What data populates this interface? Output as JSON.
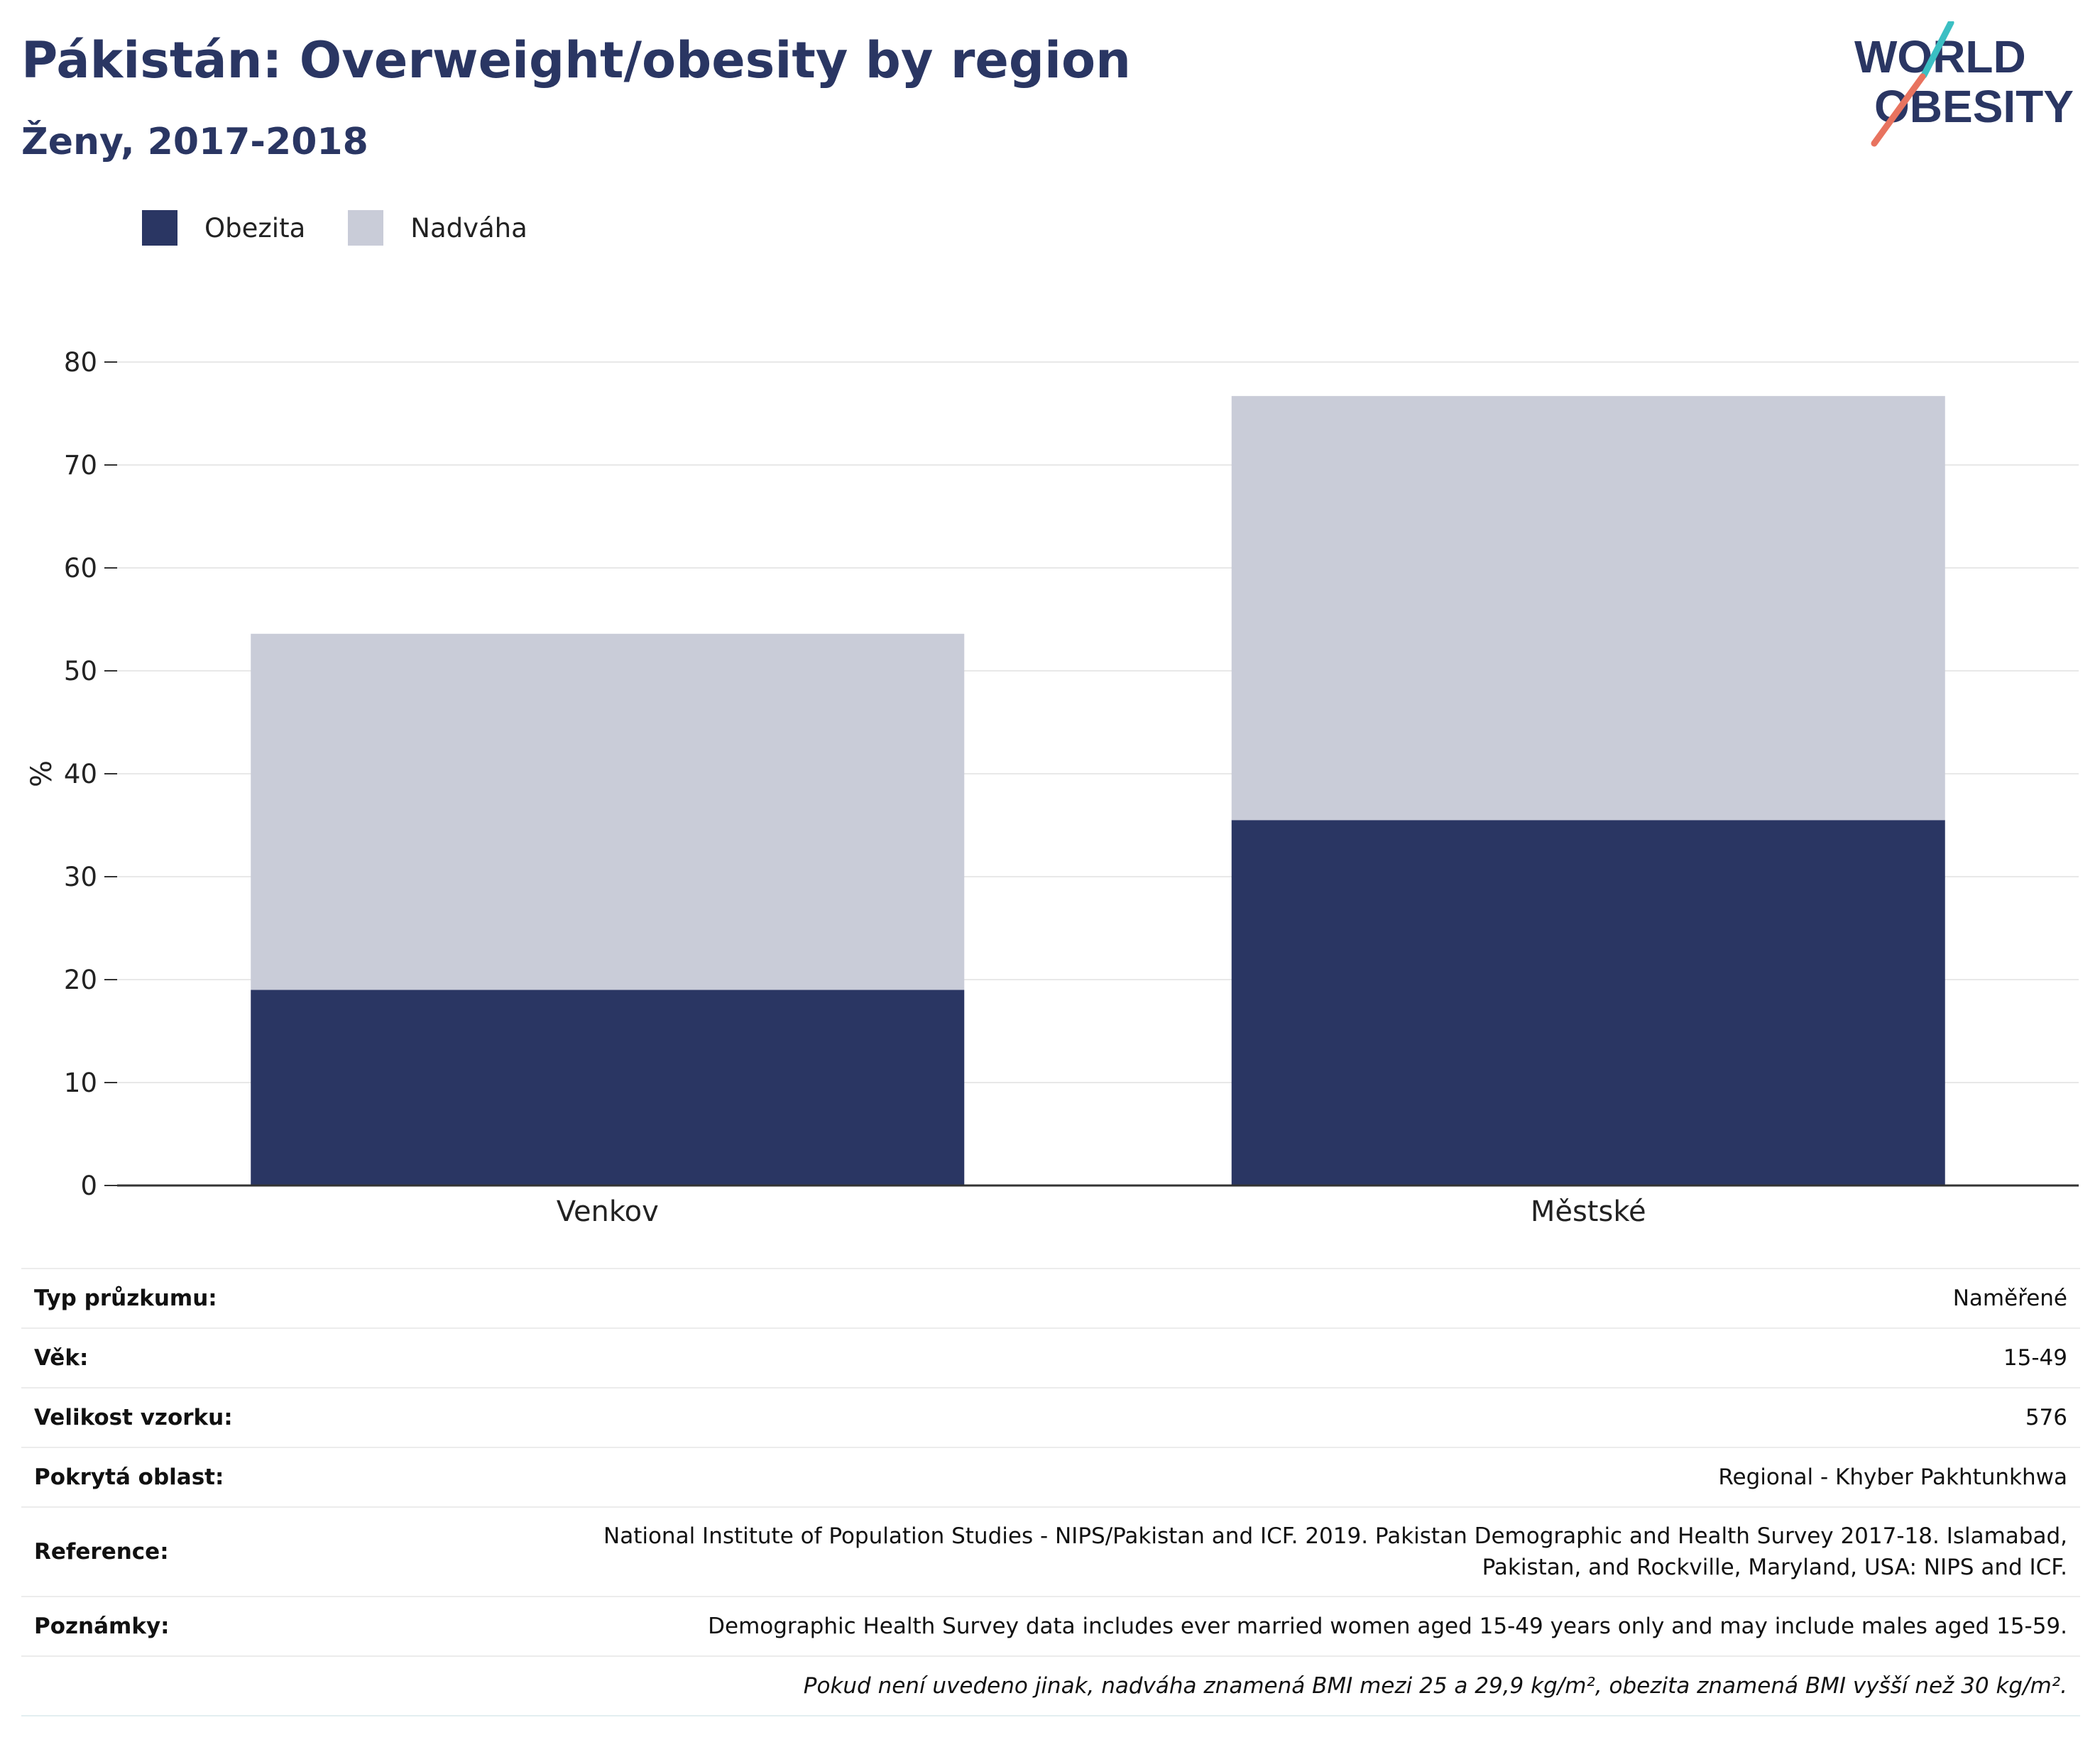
{
  "header": {
    "title": "Pákistán: Overweight/obesity by region",
    "subtitle": "Ženy, 2017-2018"
  },
  "logo": {
    "line1": "WORLD",
    "line2": "OBESITY"
  },
  "colors": {
    "obesity": "#2a3663",
    "overweight": "#c9ccd8",
    "grid": "#e8e8e8",
    "axis": "#333333"
  },
  "chart_data": {
    "type": "bar",
    "stacked": true,
    "categories": [
      "Venkov",
      "Městské"
    ],
    "series": [
      {
        "name": "Obezita",
        "values": [
          19.0,
          35.5
        ]
      },
      {
        "name": "Nadváha",
        "values": [
          34.6,
          41.2
        ]
      }
    ],
    "ylabel": "%",
    "ylim": [
      0,
      80
    ],
    "yticks": [
      0,
      10,
      20,
      30,
      40,
      50,
      60,
      70,
      80
    ],
    "grid": true,
    "legend": "top-left"
  },
  "meta": {
    "rows": [
      {
        "key": "Typ průzkumu:",
        "value": "Naměřené"
      },
      {
        "key": "Věk:",
        "value": "15-49"
      },
      {
        "key": "Velikost vzorku:",
        "value": "576"
      },
      {
        "key": "Pokrytá oblast:",
        "value": "Regional - Khyber Pakhtunkhwa"
      },
      {
        "key": "Reference:",
        "value": "National Institute of Population Studies - NIPS/Pakistan and ICF. 2019. Pakistan Demographic and Health Survey 2017-18. Islamabad, Pakistan, and Rockville, Maryland, USA: NIPS and ICF."
      },
      {
        "key": "Poznámky:",
        "value": "Demographic Health Survey data includes ever married women aged 15-49 years only and may include males aged 15-59."
      }
    ],
    "footnote": "Pokud není uvedeno jinak, nadváha znamená BMI mezi 25 a 29,9 kg/m², obezita znamená BMI vyšší než 30 kg/m²."
  }
}
